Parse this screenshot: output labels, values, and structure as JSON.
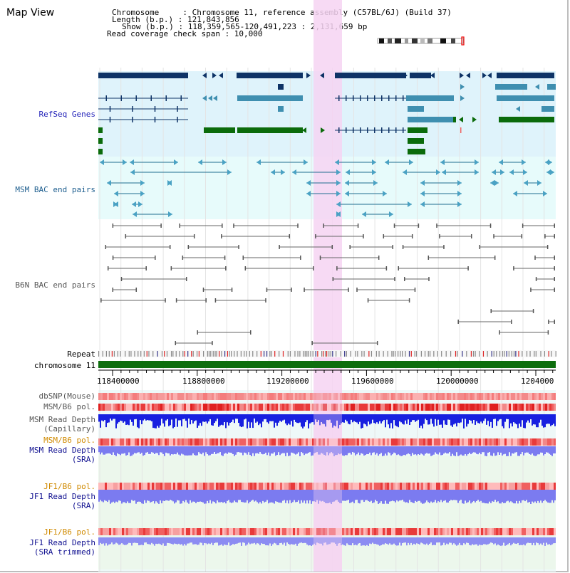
{
  "title": "Map View",
  "header": {
    "line1": "Chromosome     : Chromosome 11, reference assembly (C57BL/6J) (Build 37)",
    "line2": "Length (b.p.) : 121,843,856",
    "line3": "Show (b.p.) : 118,359,565-120,491,223 : 2,131,659 bp",
    "line4": "Read coverage check span : 10,000"
  },
  "tracks": {
    "refseq": "RefSeq Genes",
    "msm_bac": "MSM BAC end pairs",
    "b6n_bac": "B6N BAC end pairs",
    "repeat": "Repeat",
    "chromosome": "chromosome 11"
  },
  "axis": {
    "ticks": [
      "118400000",
      "118800000",
      "119200000",
      "119600000",
      "120000000",
      "1204000"
    ]
  },
  "lower_tracks": {
    "dbsnp": "dbSNP(Mouse)",
    "msm_b6_pol_1": "MSM/B6 pol.",
    "msm_read_depth_cap_1": "MSM Read Depth",
    "msm_read_depth_cap_2": "(Capillary)",
    "msm_b6_pol_2": "MSM/B6 pol.",
    "msm_read_depth_sra_1": "MSM Read Depth",
    "msm_read_depth_sra_2": "(SRA)",
    "jf1_b6_pol_1": "JF1/B6 pol.",
    "jf1_read_depth_sra_1": "JF1 Read Depth",
    "jf1_read_depth_sra_2": "(SRA)",
    "jf1_b6_pol_2": "JF1/B6 pol.",
    "jf1_read_depth_trim_1": "JF1 Read Depth",
    "jf1_read_depth_trim_2": "(SRA trimmed)"
  },
  "colors": {
    "refseq_bg": "#dff3fb",
    "bac_bg": "#e7fbfb",
    "highlight": "#f6d3f2",
    "gene_dark": "#0e3366",
    "gene_mid": "#3f8fb0",
    "gene_green": "#0b6b0b",
    "chrom_green": "#0e6e0e",
    "pol_red": "#e83a3a",
    "depth_blue": "#1820e0",
    "depth_lavender": "#7b7bf0"
  }
}
